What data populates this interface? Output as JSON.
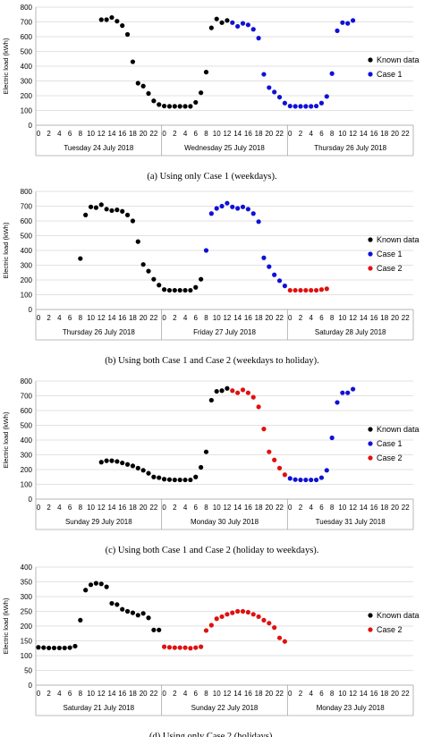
{
  "chart_data": [
    {
      "type": "scatter",
      "caption": "(a) Using only Case 1 (weekdays).",
      "ylabel": "Electric load (kWh)",
      "ylim": [
        0,
        800
      ],
      "yticks": [
        0,
        100,
        200,
        300,
        400,
        500,
        600,
        700,
        800
      ],
      "hour_labels": [
        0,
        2,
        4,
        6,
        8,
        10,
        12,
        14,
        16,
        18,
        20,
        22
      ],
      "days": [
        "Tuesday 24 July 2018",
        "Wednesday 25 July 2018",
        "Thursday 26 July 2018"
      ],
      "legend": [
        "Known data",
        "Case 1"
      ],
      "series": [
        {
          "name": "Known data",
          "color": "#000000",
          "points": [
            [
              0,
              12,
              715
            ],
            [
              0,
              13,
              715
            ],
            [
              0,
              14,
              730
            ],
            [
              0,
              15,
              705
            ],
            [
              0,
              16,
              675
            ],
            [
              0,
              17,
              615
            ],
            [
              0,
              18,
              430
            ],
            [
              0,
              19,
              285
            ],
            [
              0,
              20,
              265
            ],
            [
              0,
              21,
              215
            ],
            [
              0,
              22,
              165
            ],
            [
              0,
              23,
              140
            ],
            [
              1,
              0,
              130
            ],
            [
              1,
              1,
              128
            ],
            [
              1,
              2,
              128
            ],
            [
              1,
              3,
              128
            ],
            [
              1,
              4,
              128
            ],
            [
              1,
              5,
              128
            ],
            [
              1,
              6,
              155
            ],
            [
              1,
              7,
              220
            ],
            [
              1,
              8,
              360
            ],
            [
              1,
              9,
              660
            ],
            [
              1,
              10,
              720
            ],
            [
              1,
              11,
              695
            ],
            [
              1,
              12,
              710
            ]
          ]
        },
        {
          "name": "Case 1",
          "color": "#1010d8",
          "points": [
            [
              1,
              13,
              695
            ],
            [
              1,
              14,
              670
            ],
            [
              1,
              15,
              690
            ],
            [
              1,
              16,
              680
            ],
            [
              1,
              17,
              650
            ],
            [
              1,
              18,
              590
            ],
            [
              1,
              19,
              345
            ],
            [
              1,
              20,
              255
            ],
            [
              1,
              21,
              225
            ],
            [
              1,
              22,
              190
            ],
            [
              1,
              23,
              150
            ],
            [
              2,
              0,
              130
            ],
            [
              2,
              1,
              128
            ],
            [
              2,
              2,
              128
            ],
            [
              2,
              3,
              128
            ],
            [
              2,
              4,
              128
            ],
            [
              2,
              5,
              130
            ],
            [
              2,
              6,
              150
            ],
            [
              2,
              7,
              195
            ],
            [
              2,
              8,
              350
            ],
            [
              2,
              9,
              640
            ],
            [
              2,
              10,
              695
            ],
            [
              2,
              11,
              690
            ],
            [
              2,
              12,
              710
            ]
          ]
        }
      ]
    },
    {
      "type": "scatter",
      "caption": "(b) Using both Case 1 and Case 2 (weekdays to holiday).",
      "ylabel": "Electric load (kWh)",
      "ylim": [
        0,
        800
      ],
      "yticks": [
        0,
        100,
        200,
        300,
        400,
        500,
        600,
        700,
        800
      ],
      "hour_labels": [
        0,
        2,
        4,
        6,
        8,
        10,
        12,
        14,
        16,
        18,
        20,
        22
      ],
      "days": [
        "Thursday 26 July 2018",
        "Friday 27 July 2018",
        "Saturday 28 July 2018"
      ],
      "legend": [
        "Known data",
        "Case 1",
        "Case 2"
      ],
      "series": [
        {
          "name": "Known data",
          "color": "#000000",
          "points": [
            [
              0,
              8,
              345
            ],
            [
              0,
              9,
              640
            ],
            [
              0,
              10,
              695
            ],
            [
              0,
              11,
              690
            ],
            [
              0,
              12,
              710
            ],
            [
              0,
              13,
              680
            ],
            [
              0,
              14,
              670
            ],
            [
              0,
              15,
              675
            ],
            [
              0,
              16,
              665
            ],
            [
              0,
              17,
              640
            ],
            [
              0,
              18,
              600
            ],
            [
              0,
              19,
              460
            ],
            [
              0,
              20,
              305
            ],
            [
              0,
              21,
              260
            ],
            [
              0,
              22,
              205
            ],
            [
              0,
              23,
              165
            ],
            [
              1,
              0,
              135
            ],
            [
              1,
              1,
              130
            ],
            [
              1,
              2,
              130
            ],
            [
              1,
              3,
              130
            ],
            [
              1,
              4,
              130
            ],
            [
              1,
              5,
              130
            ],
            [
              1,
              6,
              150
            ],
            [
              1,
              7,
              205
            ]
          ]
        },
        {
          "name": "Case 1",
          "color": "#1010d8",
          "points": [
            [
              1,
              8,
              400
            ],
            [
              1,
              9,
              650
            ],
            [
              1,
              10,
              685
            ],
            [
              1,
              11,
              700
            ],
            [
              1,
              12,
              720
            ],
            [
              1,
              13,
              695
            ],
            [
              1,
              14,
              685
            ],
            [
              1,
              15,
              695
            ],
            [
              1,
              16,
              680
            ],
            [
              1,
              17,
              650
            ],
            [
              1,
              18,
              595
            ],
            [
              1,
              19,
              350
            ],
            [
              1,
              20,
              290
            ],
            [
              1,
              21,
              235
            ],
            [
              1,
              22,
              195
            ],
            [
              1,
              23,
              160
            ]
          ]
        },
        {
          "name": "Case 2",
          "color": "#e01010",
          "points": [
            [
              2,
              0,
              130
            ],
            [
              2,
              1,
              130
            ],
            [
              2,
              2,
              130
            ],
            [
              2,
              3,
              130
            ],
            [
              2,
              4,
              130
            ],
            [
              2,
              5,
              130
            ],
            [
              2,
              6,
              135
            ],
            [
              2,
              7,
              140
            ]
          ]
        }
      ]
    },
    {
      "type": "scatter",
      "caption": "(c) Using both Case 1 and Case 2 (holiday to weekdays).",
      "ylabel": "Electric load (kWh)",
      "ylim": [
        0,
        800
      ],
      "yticks": [
        0,
        100,
        200,
        300,
        400,
        500,
        600,
        700,
        800
      ],
      "hour_labels": [
        0,
        2,
        4,
        6,
        8,
        10,
        12,
        14,
        16,
        18,
        20,
        22
      ],
      "days": [
        "Sunday 29 July 2018",
        "Monday 30 July 2018",
        "Tuesday 31 July 2018"
      ],
      "legend": [
        "Known data",
        "Case 1",
        "Case 2"
      ],
      "series": [
        {
          "name": "Known data",
          "color": "#000000",
          "points": [
            [
              0,
              12,
              250
            ],
            [
              0,
              13,
              260
            ],
            [
              0,
              14,
              260
            ],
            [
              0,
              15,
              255
            ],
            [
              0,
              16,
              245
            ],
            [
              0,
              17,
              235
            ],
            [
              0,
              18,
              225
            ],
            [
              0,
              19,
              210
            ],
            [
              0,
              20,
              195
            ],
            [
              0,
              21,
              175
            ],
            [
              0,
              22,
              150
            ],
            [
              0,
              23,
              145
            ],
            [
              1,
              0,
              135
            ],
            [
              1,
              1,
              132
            ],
            [
              1,
              2,
              130
            ],
            [
              1,
              3,
              130
            ],
            [
              1,
              4,
              130
            ],
            [
              1,
              5,
              130
            ],
            [
              1,
              6,
              150
            ],
            [
              1,
              7,
              215
            ],
            [
              1,
              8,
              320
            ],
            [
              1,
              9,
              670
            ],
            [
              1,
              10,
              730
            ],
            [
              1,
              11,
              735
            ],
            [
              1,
              12,
              750
            ]
          ]
        },
        {
          "name": "Case 2",
          "color": "#e01010",
          "points": [
            [
              1,
              13,
              735
            ],
            [
              1,
              14,
              720
            ],
            [
              1,
              15,
              740
            ],
            [
              1,
              16,
              720
            ],
            [
              1,
              17,
              690
            ],
            [
              1,
              18,
              625
            ],
            [
              1,
              19,
              475
            ],
            [
              1,
              20,
              320
            ],
            [
              1,
              21,
              265
            ],
            [
              1,
              22,
              210
            ],
            [
              1,
              23,
              165
            ]
          ]
        },
        {
          "name": "Case 1",
          "color": "#1010d8",
          "points": [
            [
              2,
              0,
              140
            ],
            [
              2,
              1,
              132
            ],
            [
              2,
              2,
              130
            ],
            [
              2,
              3,
              130
            ],
            [
              2,
              4,
              130
            ],
            [
              2,
              5,
              130
            ],
            [
              2,
              6,
              145
            ],
            [
              2,
              7,
              195
            ],
            [
              2,
              8,
              415
            ],
            [
              2,
              9,
              655
            ],
            [
              2,
              10,
              720
            ],
            [
              2,
              11,
              720
            ],
            [
              2,
              12,
              745
            ]
          ]
        }
      ]
    },
    {
      "type": "scatter",
      "caption": "(d) Using only Case 2 (holidays).",
      "ylabel": "Electric load (kWh)",
      "ylim": [
        0,
        400
      ],
      "yticks": [
        0,
        50,
        100,
        150,
        200,
        250,
        300,
        350,
        400
      ],
      "hour_labels": [
        0,
        2,
        4,
        6,
        8,
        10,
        12,
        14,
        16,
        18,
        20,
        22
      ],
      "days": [
        "Saturday 21 July 2018",
        "Sunday 22 July 2018",
        "Monday 23 July 2018"
      ],
      "legend": [
        "Known data",
        "Case 2"
      ],
      "series": [
        {
          "name": "Known data",
          "color": "#000000",
          "points": [
            [
              0,
              0,
              128
            ],
            [
              0,
              1,
              127
            ],
            [
              0,
              2,
              126
            ],
            [
              0,
              3,
              126
            ],
            [
              0,
              4,
              126
            ],
            [
              0,
              5,
              126
            ],
            [
              0,
              6,
              127
            ],
            [
              0,
              7,
              132
            ],
            [
              0,
              8,
              220
            ],
            [
              0,
              9,
              322
            ],
            [
              0,
              10,
              340
            ],
            [
              0,
              11,
              345
            ],
            [
              0,
              12,
              343
            ],
            [
              0,
              13,
              333
            ],
            [
              0,
              14,
              277
            ],
            [
              0,
              15,
              273
            ],
            [
              0,
              16,
              257
            ],
            [
              0,
              17,
              250
            ],
            [
              0,
              18,
              245
            ],
            [
              0,
              19,
              237
            ],
            [
              0,
              20,
              243
            ],
            [
              0,
              21,
              228
            ],
            [
              0,
              22,
              187
            ],
            [
              0,
              23,
              187
            ]
          ]
        },
        {
          "name": "Case 2",
          "color": "#e01010",
          "points": [
            [
              1,
              0,
              130
            ],
            [
              1,
              1,
              128
            ],
            [
              1,
              2,
              127
            ],
            [
              1,
              3,
              127
            ],
            [
              1,
              4,
              127
            ],
            [
              1,
              5,
              125
            ],
            [
              1,
              6,
              127
            ],
            [
              1,
              7,
              130
            ],
            [
              1,
              8,
              185
            ],
            [
              1,
              9,
              203
            ],
            [
              1,
              10,
              225
            ],
            [
              1,
              11,
              232
            ],
            [
              1,
              12,
              240
            ],
            [
              1,
              13,
              245
            ],
            [
              1,
              14,
              250
            ],
            [
              1,
              15,
              250
            ],
            [
              1,
              16,
              247
            ],
            [
              1,
              17,
              240
            ],
            [
              1,
              18,
              232
            ],
            [
              1,
              19,
              220
            ],
            [
              1,
              20,
              210
            ],
            [
              1,
              21,
              195
            ],
            [
              1,
              22,
              160
            ],
            [
              1,
              23,
              148
            ]
          ]
        }
      ]
    }
  ]
}
